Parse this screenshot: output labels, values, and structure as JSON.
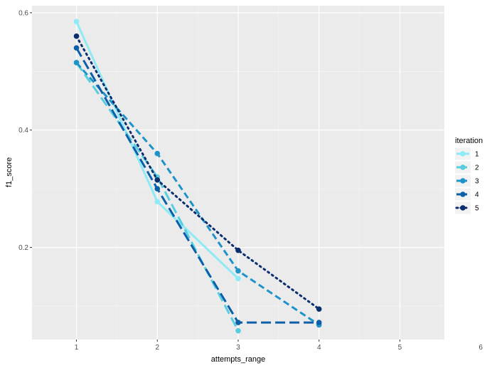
{
  "chart_data": {
    "type": "line",
    "xlabel": "attempts_range",
    "ylabel": "f1_score",
    "xlim": [
      0.45,
      5.55
    ],
    "ylim": [
      0.043,
      0.612
    ],
    "x_ticks": [
      1,
      2,
      3,
      4,
      5,
      6
    ],
    "x_tick_labels": [
      "1",
      "2",
      "3",
      "4",
      "5",
      "6"
    ],
    "y_ticks": [
      0.2,
      0.4,
      0.6
    ],
    "y_tick_labels": [
      "0.2",
      "0.4",
      "0.6"
    ],
    "grid": true,
    "legend": {
      "title": "iteration",
      "placement": "right"
    },
    "series": [
      {
        "name": "1",
        "color": "#8eeaf5",
        "dash": "solid",
        "x": [
          1,
          2,
          3
        ],
        "y": [
          0.585,
          0.278,
          0.147
        ]
      },
      {
        "name": "2",
        "color": "#57cde0",
        "dash": "longdash",
        "x": [
          1,
          2,
          3
        ],
        "y": [
          0.515,
          0.32,
          0.058
        ]
      },
      {
        "name": "3",
        "color": "#1e93c8",
        "dash": "dashed",
        "x": [
          1,
          2,
          3,
          4
        ],
        "y": [
          0.515,
          0.36,
          0.16,
          0.068
        ]
      },
      {
        "name": "4",
        "color": "#0b5fa8",
        "dash": "longdash",
        "x": [
          1,
          2,
          3,
          4
        ],
        "y": [
          0.54,
          0.3,
          0.072,
          0.072
        ]
      },
      {
        "name": "5",
        "color": "#0a2e6e",
        "dash": "dotted",
        "x": [
          1,
          2,
          3,
          4
        ],
        "y": [
          0.56,
          0.315,
          0.195,
          0.095
        ]
      }
    ]
  }
}
